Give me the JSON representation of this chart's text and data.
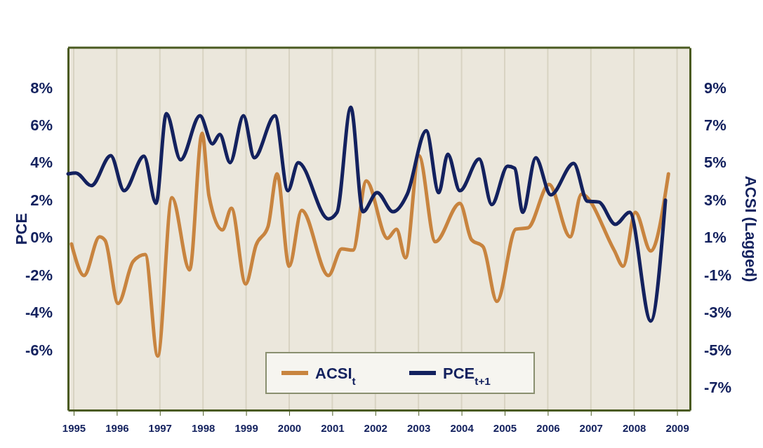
{
  "chart_data": {
    "type": "line",
    "ylabel": "PCE",
    "y2label": "ACSI (Lagged)",
    "xlim": [
      1994.87,
      2009.3
    ],
    "xticks": [
      1995,
      1996,
      1997,
      1998,
      1999,
      2000,
      2001,
      2002,
      2003,
      2004,
      2005,
      2006,
      2007,
      2008,
      2009
    ],
    "ylim": [
      -9.2,
      10.13
    ],
    "yticks": [
      {
        "value": -6,
        "label": "-6%"
      },
      {
        "value": -4,
        "label": "-4%"
      },
      {
        "value": -2,
        "label": "-2%"
      },
      {
        "value": 0,
        "label": "0%"
      },
      {
        "value": 2,
        "label": "2%"
      },
      {
        "value": 4,
        "label": "4%"
      },
      {
        "value": 6,
        "label": "6%"
      },
      {
        "value": 8,
        "label": "8%"
      }
    ],
    "y2lim": [
      -8.2,
      11.13
    ],
    "y2ticks": [
      {
        "value": -7,
        "label": "-7%"
      },
      {
        "value": -5,
        "label": "-5%"
      },
      {
        "value": -3,
        "label": "-3%"
      },
      {
        "value": -1,
        "label": "-1%"
      },
      {
        "value": 1,
        "label": "1%"
      },
      {
        "value": 3,
        "label": "3%"
      },
      {
        "value": 5,
        "label": "5%"
      },
      {
        "value": 7,
        "label": "7%"
      },
      {
        "value": 9,
        "label": "9%"
      }
    ],
    "grid": "x",
    "legend": "bottom",
    "line_style": "solid",
    "marker": "none",
    "series": [
      {
        "name": "ACSI$_{t}$",
        "color": "#c8843f",
        "axis": "y2",
        "x": [
          1994.95,
          1995.24,
          1995.6,
          1995.73,
          1996.03,
          1996.38,
          1996.66,
          1996.95,
          1997.28,
          1997.69,
          1997.98,
          1998.14,
          1998.45,
          1998.66,
          1998.99,
          1999.23,
          1999.51,
          1999.72,
          2000.0,
          2000.29,
          2000.91,
          2001.22,
          2001.48,
          2001.79,
          2002.28,
          2002.49,
          2002.7,
          2003.01,
          2003.39,
          2003.96,
          2004.23,
          2004.5,
          2004.82,
          2005.26,
          2005.54,
          2006.03,
          2006.52,
          2006.78,
          2007.54,
          2007.75,
          2008.03,
          2008.39,
          2008.8
        ],
        "values": [
          0.66,
          -1.02,
          1.04,
          0.85,
          -2.51,
          -0.27,
          0.1,
          -5.32,
          3.13,
          -0.72,
          6.57,
          3.21,
          1.41,
          2.57,
          -1.47,
          0.59,
          1.6,
          4.4,
          -0.53,
          2.46,
          -1.02,
          0.4,
          0.33,
          4.03,
          0.96,
          1.45,
          -0.08,
          5.37,
          0.78,
          2.83,
          0.89,
          0.51,
          -2.4,
          1.45,
          1.52,
          3.84,
          1.04,
          3.32,
          0.33,
          -0.53,
          2.35,
          0.29,
          4.4
        ]
      },
      {
        "name": "PCE$_{t+1}$",
        "color": "#13215e",
        "x": [
          1994.87,
          1995.05,
          1995.41,
          1995.86,
          1996.17,
          1996.63,
          1996.91,
          1997.15,
          1997.48,
          1997.93,
          1998.22,
          1998.39,
          1998.63,
          1998.94,
          1999.19,
          1999.67,
          1999.97,
          2000.21,
          2000.91,
          2001.11,
          2001.43,
          2001.71,
          2002.04,
          2002.41,
          2002.74,
          2003.18,
          2003.47,
          2003.68,
          2003.96,
          2004.41,
          2004.7,
          2005.07,
          2005.23,
          2005.42,
          2005.72,
          2006.07,
          2006.6,
          2006.92,
          2007.18,
          2007.57,
          2007.9,
          2008.39,
          2008.73
        ],
        "values": [
          3.4,
          3.45,
          2.77,
          4.37,
          2.5,
          4.34,
          1.83,
          6.62,
          4.15,
          6.5,
          5.0,
          5.5,
          4.0,
          6.5,
          4.26,
          6.5,
          2.5,
          4.0,
          1.0,
          1.35,
          6.95,
          1.38,
          2.4,
          1.38,
          2.32,
          5.7,
          2.4,
          4.45,
          2.5,
          4.19,
          1.76,
          3.81,
          3.7,
          1.35,
          4.26,
          2.28,
          3.96,
          1.94,
          1.9,
          0.71,
          1.35,
          -4.45,
          2.0
        ]
      }
    ]
  }
}
